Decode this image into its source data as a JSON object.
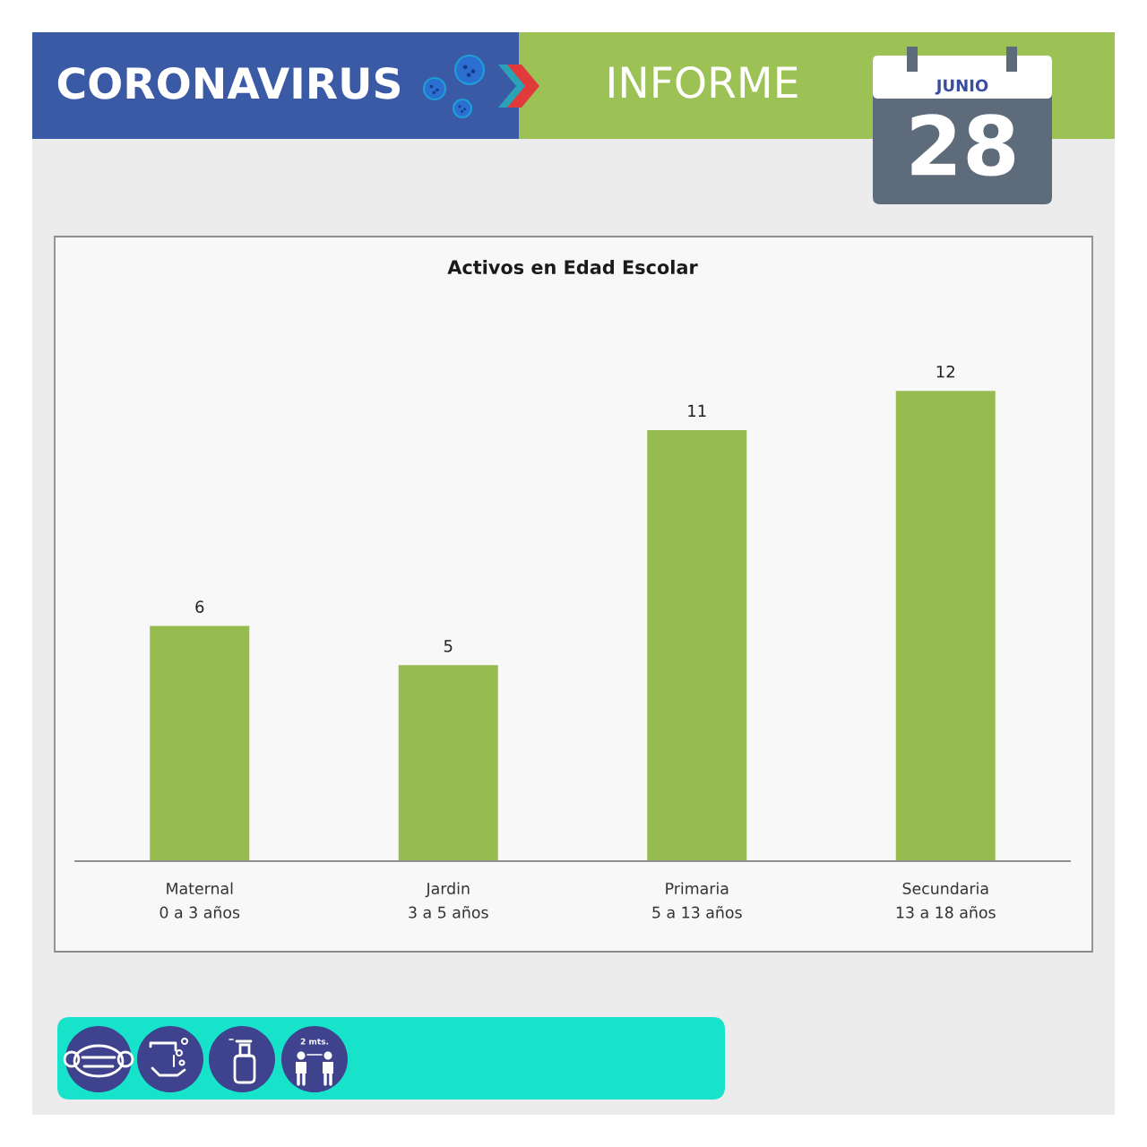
{
  "chart_data": {
    "type": "bar",
    "title": "Activos en Edad Escolar",
    "categories": [
      "Maternal\n0 a 3 años",
      "Jardin\n3 a 5 años",
      "Primaria\n5 a 13 años",
      "Secundaria\n13 a 18 años"
    ],
    "values": [
      6,
      5,
      11,
      12
    ],
    "color": "#96bb4f",
    "data_labels": true,
    "tick_labels": "x",
    "annotations": [
      "CORONAVIRUS",
      "INFORME",
      "JUNIO",
      "28",
      "2 mts."
    ]
  }
}
